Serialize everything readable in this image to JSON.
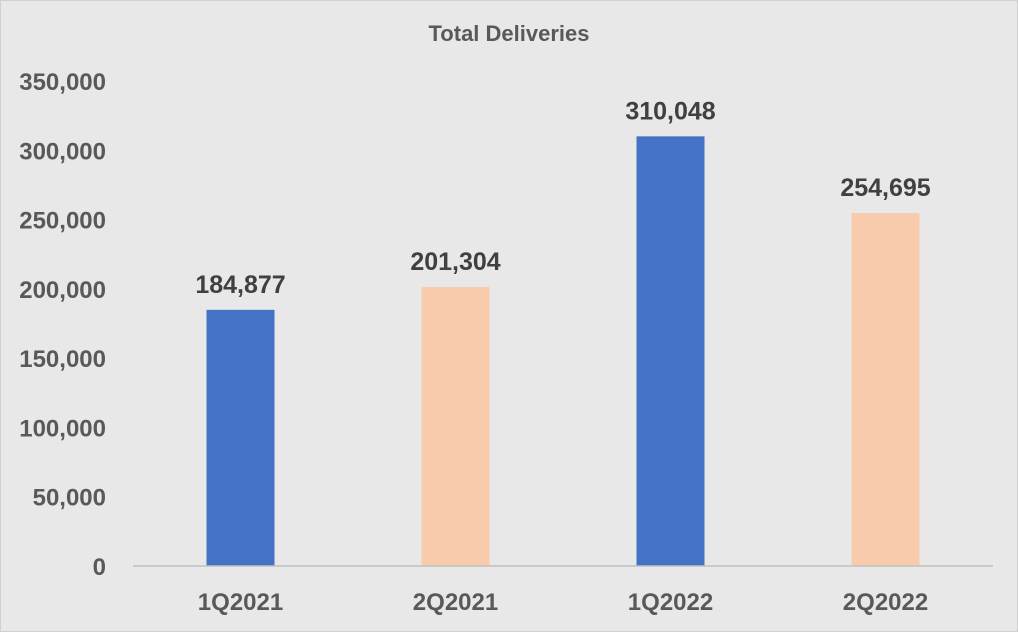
{
  "chart_data": {
    "type": "bar",
    "title": "Total Deliveries",
    "categories": [
      "1Q2021",
      "2Q2021",
      "1Q2022",
      "2Q2022"
    ],
    "values": [
      184877,
      201304,
      310048,
      254695
    ],
    "data_labels": [
      "184,877",
      "201,304",
      "310,048",
      "254,695"
    ],
    "bar_colors": [
      "#4472c4",
      "#f8cbad",
      "#4472c4",
      "#f8cbad"
    ],
    "ylim": [
      0,
      350000
    ],
    "yticks": [
      0,
      50000,
      100000,
      150000,
      200000,
      250000,
      300000,
      350000
    ],
    "ytick_labels": [
      "0",
      "50,000",
      "100,000",
      "150,000",
      "200,000",
      "250,000",
      "300,000",
      "350,000"
    ],
    "grid": false,
    "legend": "none",
    "xlabel": "",
    "ylabel": ""
  },
  "colors": {
    "background": "#e8e8e8",
    "axis_line": "#bfbfbf",
    "text": "#595959",
    "data_label_text": "#404040"
  }
}
